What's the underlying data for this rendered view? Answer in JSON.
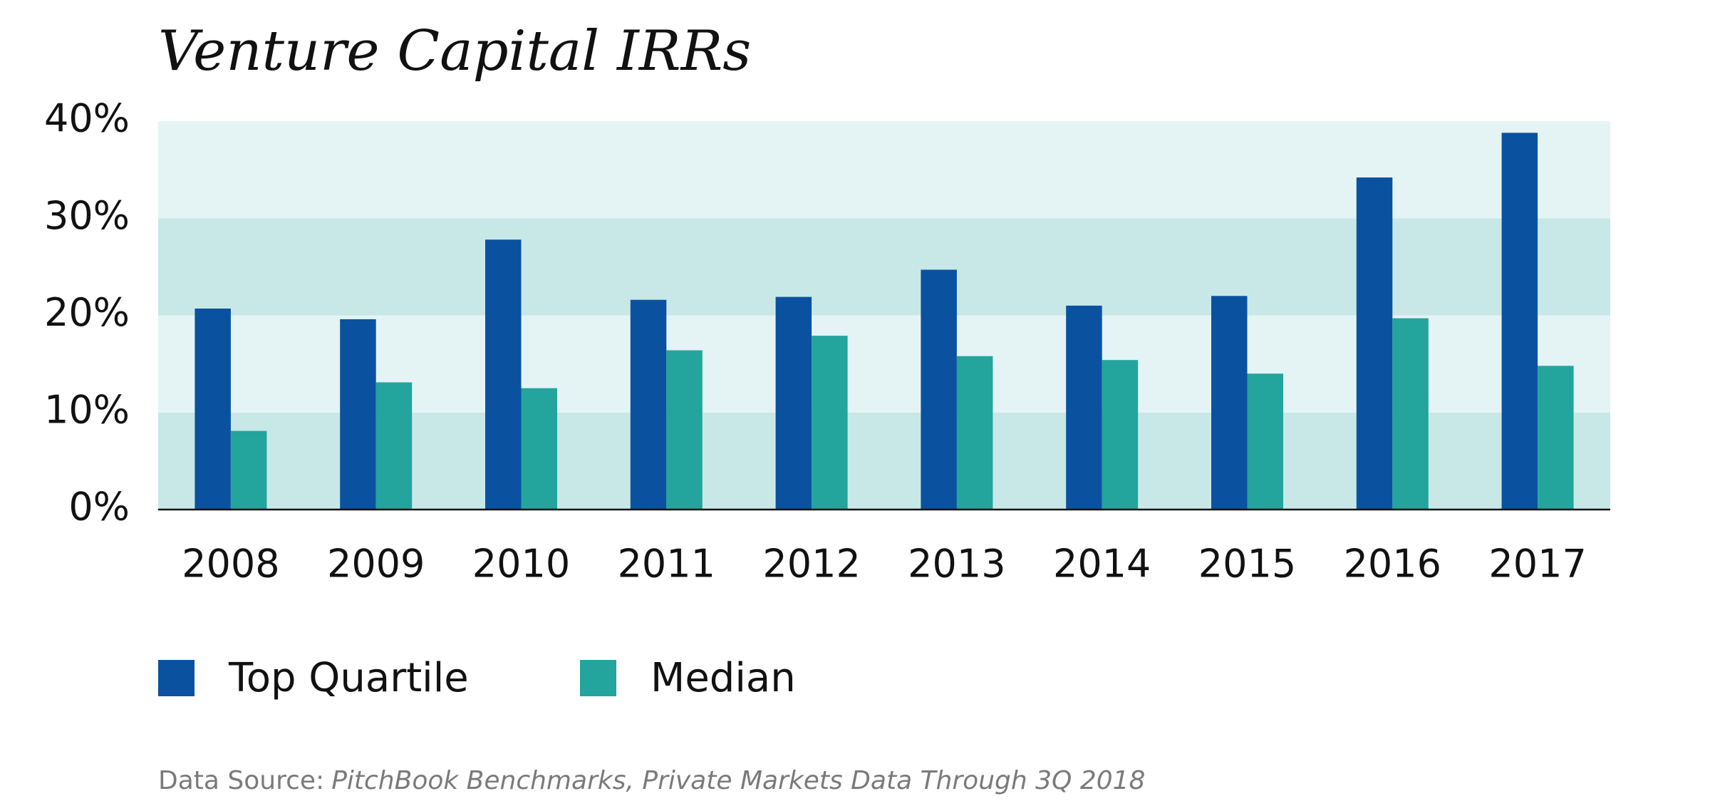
{
  "chart_data": {
    "type": "bar",
    "title": "Venture Capital IRRs",
    "categories": [
      "2008",
      "2009",
      "2010",
      "2011",
      "2012",
      "2013",
      "2014",
      "2015",
      "2016",
      "2017"
    ],
    "series": [
      {
        "name": "Top Quartile",
        "color": "#0a52a0",
        "values": [
          20.7,
          19.6,
          27.8,
          21.6,
          21.9,
          24.7,
          21.0,
          22.0,
          34.2,
          38.8
        ]
      },
      {
        "name": "Median",
        "color": "#23a49d",
        "values": [
          8.1,
          13.1,
          12.5,
          16.4,
          17.9,
          15.8,
          15.4,
          14.0,
          19.7,
          14.8
        ]
      }
    ],
    "ylim": [
      0,
      40
    ],
    "yticks": [
      {
        "value": 0,
        "label": "0%"
      },
      {
        "value": 10,
        "label": "10%"
      },
      {
        "value": 20,
        "label": "20%"
      },
      {
        "value": 30,
        "label": "30%"
      },
      {
        "value": 40,
        "label": "40%"
      }
    ],
    "band_colors": [
      "#c8e8e8",
      "#e4f4f4"
    ],
    "source": {
      "label": "Data Source:",
      "text": "PitchBook Benchmarks, Private Markets Data Through 3Q 2018"
    }
  }
}
